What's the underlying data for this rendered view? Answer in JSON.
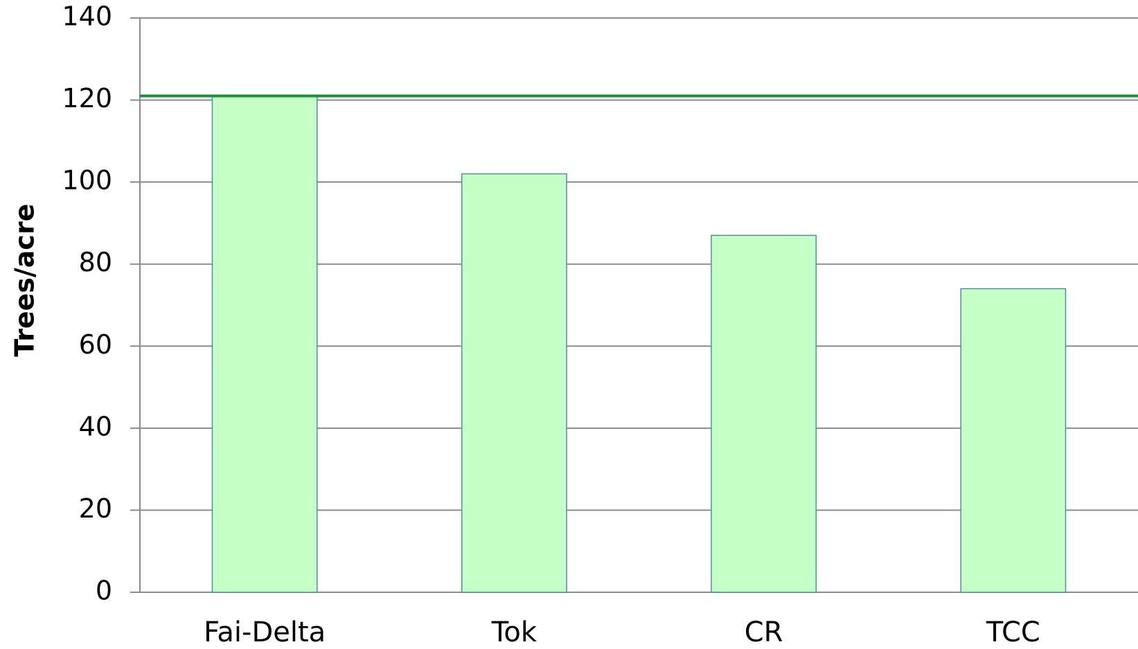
{
  "chart_data": {
    "type": "bar",
    "y_label": "Trees/acre",
    "categories": [
      "Fai-Delta",
      "Tok",
      "CR",
      "TCC"
    ],
    "values": [
      121,
      102,
      87,
      74
    ],
    "color": "#c6ffc6",
    "edge_color": "#4a90a4",
    "reference_line": 121,
    "reference_color": "#1a8f3a",
    "ylim": [
      0,
      140
    ],
    "yticks": [
      0,
      20,
      40,
      60,
      80,
      100,
      120,
      140
    ],
    "grid": true
  }
}
